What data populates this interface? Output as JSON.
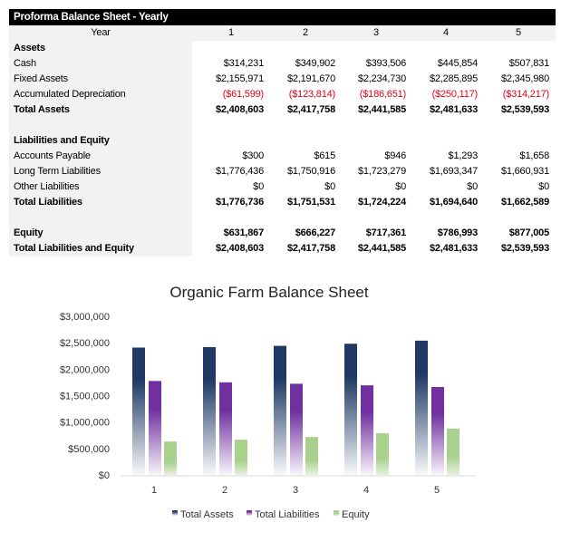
{
  "table": {
    "title": "Proforma Balance Sheet - Yearly",
    "header": {
      "label": "Year",
      "years": [
        "1",
        "2",
        "3",
        "4",
        "5"
      ]
    },
    "rows": [
      {
        "label": "Assets",
        "bold": true,
        "values": []
      },
      {
        "label": "Cash",
        "values": [
          "$314,231",
          "$349,902",
          "$393,506",
          "$445,854",
          "$507,831"
        ]
      },
      {
        "label": "Fixed Assets",
        "values": [
          "$2,155,971",
          "$2,191,670",
          "$2,234,730",
          "$2,285,895",
          "$2,345,980"
        ]
      },
      {
        "label": "Accumulated Depreciation",
        "negative": true,
        "values": [
          "($61,599)",
          "($123,814)",
          "($186,651)",
          "($250,117)",
          "($314,217)"
        ]
      },
      {
        "label": "Total Assets",
        "bold": true,
        "values": [
          "$2,408,603",
          "$2,417,758",
          "$2,441,585",
          "$2,481,633",
          "$2,539,593"
        ]
      },
      {
        "label": "",
        "values": []
      },
      {
        "label": "Liabilities and Equity",
        "bold": true,
        "values": []
      },
      {
        "label": "Accounts Payable",
        "values": [
          "$300",
          "$615",
          "$946",
          "$1,293",
          "$1,658"
        ]
      },
      {
        "label": "Long Term Liabilities",
        "values": [
          "$1,776,436",
          "$1,750,916",
          "$1,723,279",
          "$1,693,347",
          "$1,660,931"
        ]
      },
      {
        "label": "Other Liabilities",
        "values": [
          "$0",
          "$0",
          "$0",
          "$0",
          "$0"
        ]
      },
      {
        "label": "Total Liabilities",
        "bold": true,
        "values": [
          "$1,776,736",
          "$1,751,531",
          "$1,724,224",
          "$1,694,640",
          "$1,662,589"
        ]
      },
      {
        "label": "",
        "values": []
      },
      {
        "label": "Equity",
        "bold": true,
        "values": [
          "$631,867",
          "$666,227",
          "$717,361",
          "$786,993",
          "$877,005"
        ]
      },
      {
        "label": "Total Liabilities and Equity",
        "bold": true,
        "values": [
          "$2,408,603",
          "$2,417,758",
          "$2,441,585",
          "$2,481,633",
          "$2,539,593"
        ]
      }
    ],
    "negative_color": "#e3001b"
  },
  "chart_data": {
    "type": "bar",
    "title": "Organic Farm Balance Sheet",
    "categories": [
      "1",
      "2",
      "3",
      "4",
      "5"
    ],
    "series": [
      {
        "name": "Total Assets",
        "color": "#1f3864",
        "values": [
          2408603,
          2417758,
          2441585,
          2481633,
          2539593
        ]
      },
      {
        "name": "Total Liabilities",
        "color": "#7030a0",
        "values": [
          1776736,
          1751531,
          1724224,
          1694640,
          1662589
        ]
      },
      {
        "name": "Equity",
        "color": "#a9d18e",
        "values": [
          631867,
          666227,
          717361,
          786993,
          877005
        ]
      }
    ],
    "ylim": [
      0,
      3000000
    ],
    "yticks": [
      "$0",
      "$500,000",
      "$1,000,000",
      "$1,500,000",
      "$2,000,000",
      "$2,500,000",
      "$3,000,000"
    ],
    "grid": false,
    "legend": "bottom"
  }
}
